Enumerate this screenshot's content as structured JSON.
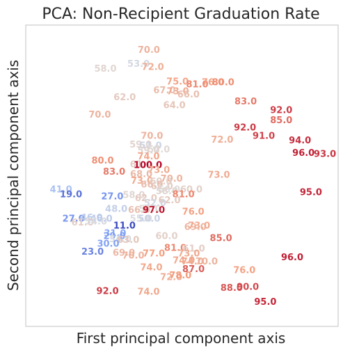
{
  "chart_data": {
    "type": "scatter",
    "title": "PCA: Non-Recipient Graduation Rate",
    "xlabel": "First principal component axis",
    "ylabel": "Second principal component axis",
    "grid": false,
    "legend": "none",
    "colormap": "coolwarm",
    "xlim": [
      0,
      100
    ],
    "ylim": [
      0,
      100
    ],
    "color_range": [
      11,
      100
    ],
    "points": [
      {
        "x": 39.4,
        "y": 91.6,
        "label": "70.0"
      },
      {
        "x": 36.1,
        "y": 86.9,
        "label": "53.0"
      },
      {
        "x": 25.5,
        "y": 85.3,
        "label": "58.0"
      },
      {
        "x": 40.7,
        "y": 85.9,
        "label": "72.0"
      },
      {
        "x": 48.6,
        "y": 81.1,
        "label": "75.0"
      },
      {
        "x": 54.9,
        "y": 80.1,
        "label": "81.0"
      },
      {
        "x": 59.9,
        "y": 80.8,
        "label": "76.0"
      },
      {
        "x": 63.2,
        "y": 80.8,
        "label": "80.0"
      },
      {
        "x": 44.4,
        "y": 78.2,
        "label": "67.0"
      },
      {
        "x": 48.7,
        "y": 77.8,
        "label": "73.0"
      },
      {
        "x": 52.1,
        "y": 76.8,
        "label": "66.0"
      },
      {
        "x": 31.7,
        "y": 75.9,
        "label": "62.0"
      },
      {
        "x": 47.6,
        "y": 73.2,
        "label": "64.0"
      },
      {
        "x": 70.4,
        "y": 74.5,
        "label": "83.0"
      },
      {
        "x": 81.8,
        "y": 71.6,
        "label": "92.0"
      },
      {
        "x": 81.8,
        "y": 68.3,
        "label": "85.0"
      },
      {
        "x": 23.7,
        "y": 70.1,
        "label": "70.0"
      },
      {
        "x": 70.2,
        "y": 65.8,
        "label": "92.0"
      },
      {
        "x": 76.2,
        "y": 63.1,
        "label": "91.0"
      },
      {
        "x": 40.4,
        "y": 63.1,
        "label": "70.0"
      },
      {
        "x": 87.8,
        "y": 61.5,
        "label": "94.0"
      },
      {
        "x": 62.9,
        "y": 61.8,
        "label": "72.0"
      },
      {
        "x": 36.8,
        "y": 60.2,
        "label": "59.0"
      },
      {
        "x": 40.0,
        "y": 59.8,
        "label": "51.0"
      },
      {
        "x": 42.6,
        "y": 58.5,
        "label": "57.0"
      },
      {
        "x": 39.3,
        "y": 58.2,
        "label": "59.0"
      },
      {
        "x": 88.9,
        "y": 57.4,
        "label": "96.0"
      },
      {
        "x": 95.8,
        "y": 57.0,
        "label": "93.0"
      },
      {
        "x": 39.3,
        "y": 56.2,
        "label": "74.0"
      },
      {
        "x": 24.6,
        "y": 54.9,
        "label": "80.0"
      },
      {
        "x": 36.9,
        "y": 53.6,
        "label": "61.0"
      },
      {
        "x": 39.1,
        "y": 53.3,
        "label": "100.0"
      },
      {
        "x": 42.6,
        "y": 51.7,
        "label": "73.0"
      },
      {
        "x": 28.3,
        "y": 51.1,
        "label": "83.0"
      },
      {
        "x": 37.0,
        "y": 50.4,
        "label": "68.0"
      },
      {
        "x": 46.7,
        "y": 48.8,
        "label": "70.0"
      },
      {
        "x": 61.8,
        "y": 50.1,
        "label": "73.0"
      },
      {
        "x": 37.2,
        "y": 48.2,
        "label": "73.0"
      },
      {
        "x": 43.3,
        "y": 47.9,
        "label": "60.0"
      },
      {
        "x": 43.6,
        "y": 46.3,
        "label": "61.0"
      },
      {
        "x": 40.4,
        "y": 46.9,
        "label": "66.0"
      },
      {
        "x": 45.9,
        "y": 45.3,
        "label": "56.0"
      },
      {
        "x": 53.0,
        "y": 45.3,
        "label": "60.0"
      },
      {
        "x": 45.2,
        "y": 44.7,
        "label": "58.0"
      },
      {
        "x": 50.5,
        "y": 43.7,
        "label": "81.0"
      },
      {
        "x": 11.3,
        "y": 45.3,
        "label": "41.0"
      },
      {
        "x": 14.5,
        "y": 43.7,
        "label": "19.0"
      },
      {
        "x": 27.7,
        "y": 43.0,
        "label": "27.0"
      },
      {
        "x": 34.6,
        "y": 43.4,
        "label": "58.0"
      },
      {
        "x": 91.3,
        "y": 44.3,
        "label": "95.0"
      },
      {
        "x": 38.5,
        "y": 42.4,
        "label": "62.0"
      },
      {
        "x": 46.0,
        "y": 41.7,
        "label": "62.0"
      },
      {
        "x": 41.4,
        "y": 40.8,
        "label": "52.0"
      },
      {
        "x": 29.0,
        "y": 38.8,
        "label": "48.0"
      },
      {
        "x": 36.3,
        "y": 38.5,
        "label": "66.0"
      },
      {
        "x": 39.8,
        "y": 38.8,
        "label": "57.0"
      },
      {
        "x": 41.0,
        "y": 38.5,
        "label": "97.0"
      },
      {
        "x": 53.6,
        "y": 37.9,
        "label": "76.0"
      },
      {
        "x": 15.3,
        "y": 35.6,
        "label": "27.0"
      },
      {
        "x": 21.1,
        "y": 35.9,
        "label": "46.0"
      },
      {
        "x": 24.2,
        "y": 35.6,
        "label": "46.0"
      },
      {
        "x": 18.2,
        "y": 34.3,
        "label": "61.0"
      },
      {
        "x": 22.5,
        "y": 34.6,
        "label": "54.0"
      },
      {
        "x": 36.9,
        "y": 35.6,
        "label": "55.0"
      },
      {
        "x": 39.5,
        "y": 35.6,
        "label": "50.0"
      },
      {
        "x": 31.6,
        "y": 33.3,
        "label": "11.0"
      },
      {
        "x": 54.3,
        "y": 32.8,
        "label": "69.0"
      },
      {
        "x": 55.5,
        "y": 33.3,
        "label": "73.0"
      },
      {
        "x": 28.6,
        "y": 30.7,
        "label": "31.0"
      },
      {
        "x": 28.4,
        "y": 29.8,
        "label": "29.0"
      },
      {
        "x": 30.3,
        "y": 28.8,
        "label": "54.0"
      },
      {
        "x": 32.8,
        "y": 28.5,
        "label": "63.0"
      },
      {
        "x": 45.1,
        "y": 29.8,
        "label": "60.0"
      },
      {
        "x": 62.5,
        "y": 29.1,
        "label": "85.0"
      },
      {
        "x": 26.4,
        "y": 27.2,
        "label": "30.0"
      },
      {
        "x": 47.9,
        "y": 25.9,
        "label": "81.0"
      },
      {
        "x": 53.8,
        "y": 25.6,
        "label": "61.0"
      },
      {
        "x": 21.4,
        "y": 24.6,
        "label": "23.0"
      },
      {
        "x": 31.4,
        "y": 24.3,
        "label": "69.0"
      },
      {
        "x": 34.4,
        "y": 23.3,
        "label": "70.0"
      },
      {
        "x": 41.0,
        "y": 24.0,
        "label": "77.0"
      },
      {
        "x": 52.2,
        "y": 24.0,
        "label": "73.0"
      },
      {
        "x": 85.3,
        "y": 22.7,
        "label": "96.0"
      },
      {
        "x": 50.6,
        "y": 21.7,
        "label": "74.0"
      },
      {
        "x": 53.4,
        "y": 21.4,
        "label": "74.0"
      },
      {
        "x": 57.9,
        "y": 21.4,
        "label": "70.0"
      },
      {
        "x": 40.2,
        "y": 19.4,
        "label": "74.0"
      },
      {
        "x": 53.7,
        "y": 18.8,
        "label": "87.0"
      },
      {
        "x": 70.0,
        "y": 18.5,
        "label": "76.0"
      },
      {
        "x": 46.6,
        "y": 16.2,
        "label": "72.0"
      },
      {
        "x": 49.5,
        "y": 16.8,
        "label": "78.0"
      },
      {
        "x": 65.9,
        "y": 12.6,
        "label": "88.0"
      },
      {
        "x": 71.1,
        "y": 12.9,
        "label": "90.0"
      },
      {
        "x": 26.2,
        "y": 11.6,
        "label": "92.0"
      },
      {
        "x": 39.3,
        "y": 11.3,
        "label": "74.0"
      },
      {
        "x": 76.7,
        "y": 8.0,
        "label": "95.0"
      }
    ]
  }
}
